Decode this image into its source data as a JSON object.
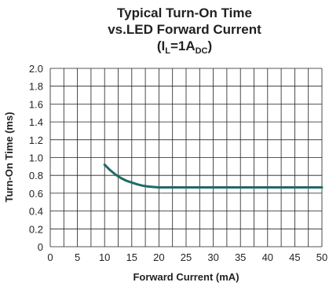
{
  "chart_data": {
    "type": "line",
    "title": "Typical Turn-On Time",
    "subtitle": "vs.LED Forward Current",
    "condition": {
      "prefix": "(I",
      "sub1": "L",
      "mid": "=1A",
      "sub2": "DC",
      "suffix": ")"
    },
    "xlabel": "Forward Current (mA)",
    "ylabel": "Turn-On Time (ms)",
    "xlim": [
      0,
      50
    ],
    "ylim": [
      0,
      2.0
    ],
    "x_ticks": [
      "0",
      "5",
      "10",
      "15",
      "20",
      "25",
      "30",
      "35",
      "40",
      "45",
      "50"
    ],
    "y_ticks": [
      "0",
      "0.2",
      "0.4",
      "0.6",
      "0.8",
      "1.0",
      "1.2",
      "1.4",
      "1.6",
      "1.8",
      "2.0"
    ],
    "x_minor_grid_step": 2.5,
    "y_grid_step": 0.2,
    "grid": true,
    "series": [
      {
        "x": [
          10,
          11,
          12,
          13,
          14,
          15,
          16,
          17,
          18,
          19,
          20,
          22,
          25,
          30,
          35,
          40,
          45,
          50
        ],
        "y": [
          0.92,
          0.86,
          0.81,
          0.77,
          0.74,
          0.72,
          0.7,
          0.685,
          0.675,
          0.67,
          0.665,
          0.665,
          0.665,
          0.665,
          0.665,
          0.665,
          0.665,
          0.665
        ]
      }
    ],
    "colors": {
      "line": "#1e6b66",
      "grid": "#231f20",
      "text": "#231f20"
    }
  }
}
